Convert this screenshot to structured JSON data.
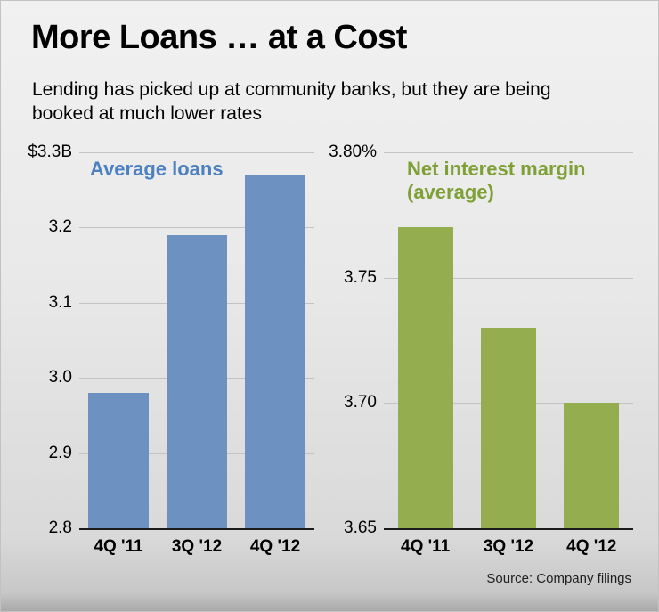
{
  "header": {
    "title": "More Loans … at a Cost",
    "subtitle": "Lending has picked up at community banks, but they are being booked at much lower rates"
  },
  "footer": {
    "source": "Source: Company filings"
  },
  "chart_data": [
    {
      "type": "bar",
      "title": "Average loans",
      "top_axis_label": "$3.3B",
      "categories": [
        "4Q '11",
        "3Q '12",
        "4Q '12"
      ],
      "values": [
        2.98,
        3.19,
        3.27
      ],
      "ylim": [
        2.8,
        3.3
      ],
      "yticks": [
        2.8,
        2.9,
        3.0,
        3.1,
        3.2
      ],
      "ytick_labels": [
        "2.8",
        "2.9",
        "3.0",
        "3.1",
        "3.2"
      ],
      "grid": true,
      "legend_position": "top-left-inside",
      "bar_color": "#6d91c1",
      "legend_color": "#4d80c0"
    },
    {
      "type": "bar",
      "title": "Net interest margin (average)",
      "top_axis_label": "3.80%",
      "categories": [
        "4Q '11",
        "3Q '12",
        "4Q '12"
      ],
      "values": [
        3.77,
        3.73,
        3.7
      ],
      "ylim": [
        3.65,
        3.8
      ],
      "yticks": [
        3.65,
        3.7,
        3.75
      ],
      "ytick_labels": [
        "3.65",
        "3.70",
        "3.75"
      ],
      "grid": true,
      "legend_position": "top-left-inside",
      "bar_color": "#94ae4f",
      "legend_color": "#7fa036"
    }
  ]
}
